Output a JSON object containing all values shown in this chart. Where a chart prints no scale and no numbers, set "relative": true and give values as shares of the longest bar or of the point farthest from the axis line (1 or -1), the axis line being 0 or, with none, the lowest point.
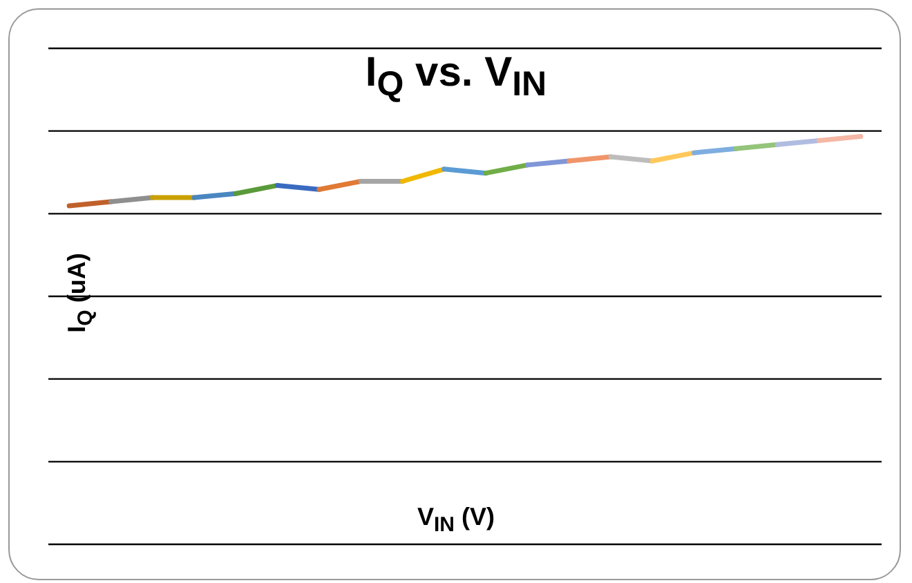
{
  "chart_data": {
    "type": "line",
    "title": "I$_{Q}$ vs. V$_{IN}$",
    "xlabel": "V$_{IN}$ (V)",
    "ylabel": "I$_{Q}$ (uA)",
    "relative": true,
    "grid": "y",
    "categories": [
      null,
      null,
      null,
      null,
      null,
      null,
      null,
      null,
      null,
      null,
      null,
      null,
      null,
      null,
      null,
      null,
      null,
      null,
      null,
      null
    ],
    "series": [
      {
        "color": "#c0602a",
        "values": [
          0.83,
          0.84,
          null,
          null,
          null,
          null,
          null,
          null,
          null,
          null,
          null,
          null,
          null,
          null,
          null,
          null,
          null,
          null,
          null,
          null
        ]
      },
      {
        "color": "#8f8f8f",
        "values": [
          null,
          0.84,
          0.85,
          null,
          null,
          null,
          null,
          null,
          null,
          null,
          null,
          null,
          null,
          null,
          null,
          null,
          null,
          null,
          null,
          null
        ]
      },
      {
        "color": "#c9a000",
        "values": [
          null,
          null,
          0.85,
          0.85,
          null,
          null,
          null,
          null,
          null,
          null,
          null,
          null,
          null,
          null,
          null,
          null,
          null,
          null,
          null,
          null
        ]
      },
      {
        "color": "#4a86c0",
        "values": [
          null,
          null,
          null,
          0.85,
          0.86,
          null,
          null,
          null,
          null,
          null,
          null,
          null,
          null,
          null,
          null,
          null,
          null,
          null,
          null,
          null
        ]
      },
      {
        "color": "#5a9a3a",
        "values": [
          null,
          null,
          null,
          null,
          0.86,
          0.88,
          null,
          null,
          null,
          null,
          null,
          null,
          null,
          null,
          null,
          null,
          null,
          null,
          null,
          null
        ]
      },
      {
        "color": "#3a6bc0",
        "values": [
          null,
          null,
          null,
          null,
          null,
          0.88,
          0.87,
          null,
          null,
          null,
          null,
          null,
          null,
          null,
          null,
          null,
          null,
          null,
          null,
          null
        ]
      },
      {
        "color": "#e07a35",
        "values": [
          null,
          null,
          null,
          null,
          null,
          null,
          0.87,
          0.89,
          null,
          null,
          null,
          null,
          null,
          null,
          null,
          null,
          null,
          null,
          null,
          null
        ]
      },
      {
        "color": "#a5a5a5",
        "values": [
          null,
          null,
          null,
          null,
          null,
          null,
          null,
          0.89,
          0.89,
          null,
          null,
          null,
          null,
          null,
          null,
          null,
          null,
          null,
          null,
          null
        ]
      },
      {
        "color": "#f0b800",
        "values": [
          null,
          null,
          null,
          null,
          null,
          null,
          null,
          null,
          0.89,
          0.92,
          null,
          null,
          null,
          null,
          null,
          null,
          null,
          null,
          null,
          null
        ]
      },
      {
        "color": "#5b9bd5",
        "values": [
          null,
          null,
          null,
          null,
          null,
          null,
          null,
          null,
          null,
          0.92,
          0.91,
          null,
          null,
          null,
          null,
          null,
          null,
          null,
          null,
          null
        ]
      },
      {
        "color": "#70ad47",
        "values": [
          null,
          null,
          null,
          null,
          null,
          null,
          null,
          null,
          null,
          null,
          0.91,
          0.93,
          null,
          null,
          null,
          null,
          null,
          null,
          null,
          null
        ]
      },
      {
        "color": "#7f96d8",
        "values": [
          null,
          null,
          null,
          null,
          null,
          null,
          null,
          null,
          null,
          null,
          null,
          0.93,
          0.94,
          null,
          null,
          null,
          null,
          null,
          null,
          null
        ]
      },
      {
        "color": "#f0956a",
        "values": [
          null,
          null,
          null,
          null,
          null,
          null,
          null,
          null,
          null,
          null,
          null,
          null,
          0.94,
          0.95,
          null,
          null,
          null,
          null,
          null,
          null
        ]
      },
      {
        "color": "#bdbdbd",
        "values": [
          null,
          null,
          null,
          null,
          null,
          null,
          null,
          null,
          null,
          null,
          null,
          null,
          null,
          0.95,
          0.94,
          null,
          null,
          null,
          null,
          null
        ]
      },
      {
        "color": "#ffc85a",
        "values": [
          null,
          null,
          null,
          null,
          null,
          null,
          null,
          null,
          null,
          null,
          null,
          null,
          null,
          null,
          0.94,
          0.96,
          null,
          null,
          null,
          null
        ]
      },
      {
        "color": "#7eaee0",
        "values": [
          null,
          null,
          null,
          null,
          null,
          null,
          null,
          null,
          null,
          null,
          null,
          null,
          null,
          null,
          null,
          0.96,
          0.97,
          null,
          null,
          null
        ]
      },
      {
        "color": "#94c47a",
        "values": [
          null,
          null,
          null,
          null,
          null,
          null,
          null,
          null,
          null,
          null,
          null,
          null,
          null,
          null,
          null,
          null,
          0.97,
          0.98,
          null,
          null
        ]
      },
      {
        "color": "#b0bce0",
        "values": [
          null,
          null,
          null,
          null,
          null,
          null,
          null,
          null,
          null,
          null,
          null,
          null,
          null,
          null,
          null,
          null,
          null,
          0.98,
          0.99,
          null
        ]
      },
      {
        "color": "#f5b8a5",
        "values": [
          null,
          null,
          null,
          null,
          null,
          null,
          null,
          null,
          null,
          null,
          null,
          null,
          null,
          null,
          null,
          null,
          null,
          null,
          0.99,
          1
        ]
      }
    ]
  }
}
